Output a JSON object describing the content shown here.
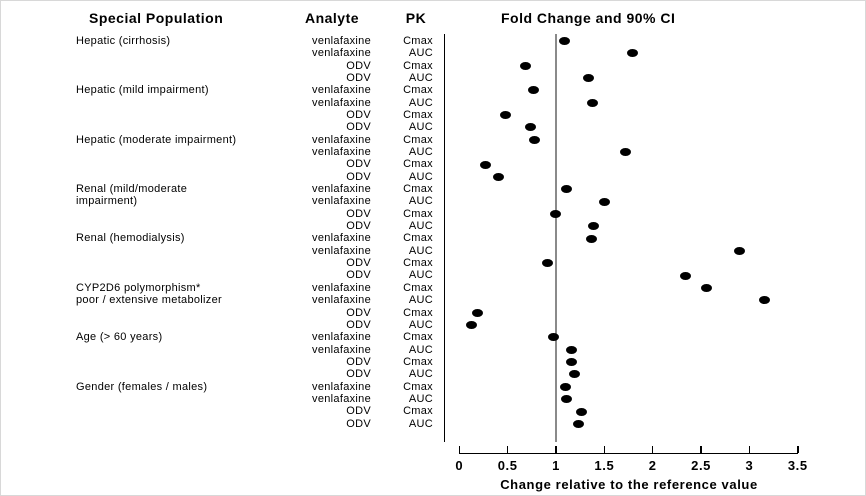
{
  "figure": {
    "background": "#ffffff",
    "dot_color": "#000000",
    "reference_line_color": "#8a8a8a",
    "axis_color": "#000000"
  },
  "headers": {
    "population": "Special Population",
    "analyte": "Analyte",
    "pk": "PK",
    "plot": "Fold Change and 90% CI"
  },
  "axis": {
    "title": "Change relative to the reference value",
    "ticks": [
      0,
      0.5,
      1,
      1.5,
      2,
      2.5,
      3,
      3.5
    ],
    "min": 0,
    "max": 3.5,
    "reference_value": 1
  },
  "chart_data": {
    "type": "scatter",
    "title": "Fold Change and 90% CI",
    "xlabel": "Change relative to the reference value",
    "xlim": [
      0,
      3.5
    ],
    "reference_line_x": 1,
    "grid": false,
    "rows": [
      {
        "population": "Hepatic (cirrhosis)",
        "analyte": "venlafaxine",
        "pk": "Cmax",
        "fold_change": 1.09
      },
      {
        "population": "",
        "analyte": "venlafaxine",
        "pk": "AUC",
        "fold_change": 1.79
      },
      {
        "population": "",
        "analyte": "ODV",
        "pk": "Cmax",
        "fold_change": 0.68
      },
      {
        "population": "",
        "analyte": "ODV",
        "pk": "AUC",
        "fold_change": 1.34
      },
      {
        "population": "Hepatic (mild impairment)",
        "analyte": "venlafaxine",
        "pk": "Cmax",
        "fold_change": 0.77
      },
      {
        "population": "",
        "analyte": "venlafaxine",
        "pk": "AUC",
        "fold_change": 1.38
      },
      {
        "population": "",
        "analyte": "ODV",
        "pk": "Cmax",
        "fold_change": 0.48
      },
      {
        "population": "",
        "analyte": "ODV",
        "pk": "AUC",
        "fold_change": 0.74
      },
      {
        "population": "Hepatic (moderate impairment)",
        "analyte": "venlafaxine",
        "pk": "Cmax",
        "fold_change": 0.78
      },
      {
        "population": "",
        "analyte": "venlafaxine",
        "pk": "AUC",
        "fold_change": 1.72
      },
      {
        "population": "",
        "analyte": "ODV",
        "pk": "Cmax",
        "fold_change": 0.27
      },
      {
        "population": "",
        "analyte": "ODV",
        "pk": "AUC",
        "fold_change": 0.41
      },
      {
        "population": "Renal (mild/moderate",
        "analyte": "venlafaxine",
        "pk": "Cmax",
        "fold_change": 1.11
      },
      {
        "population": "impairment)",
        "analyte": "venlafaxine",
        "pk": "AUC",
        "fold_change": 1.5
      },
      {
        "population": "",
        "analyte": "ODV",
        "pk": "Cmax",
        "fold_change": 0.99
      },
      {
        "population": "",
        "analyte": "ODV",
        "pk": "AUC",
        "fold_change": 1.39
      },
      {
        "population": "Renal (hemodialysis)",
        "analyte": "venlafaxine",
        "pk": "Cmax",
        "fold_change": 1.37
      },
      {
        "population": "",
        "analyte": "venlafaxine",
        "pk": "AUC",
        "fold_change": 2.9
      },
      {
        "population": "",
        "analyte": "ODV",
        "pk": "Cmax",
        "fold_change": 0.91
      },
      {
        "population": "",
        "analyte": "ODV",
        "pk": "AUC",
        "fold_change": 2.34
      },
      {
        "population": "CYP2D6 polymorphism*",
        "analyte": "venlafaxine",
        "pk": "Cmax",
        "fold_change": 2.56
      },
      {
        "population": "poor / extensive metabolizer",
        "analyte": "venlafaxine",
        "pk": "AUC",
        "fold_change": 3.16
      },
      {
        "population": "",
        "analyte": "ODV",
        "pk": "Cmax",
        "fold_change": 0.19
      },
      {
        "population": "",
        "analyte": "ODV",
        "pk": "AUC",
        "fold_change": 0.13
      },
      {
        "population": "Age (> 60 years)",
        "analyte": "venlafaxine",
        "pk": "Cmax",
        "fold_change": 0.97
      },
      {
        "population": "",
        "analyte": "venlafaxine",
        "pk": "AUC",
        "fold_change": 1.16
      },
      {
        "population": "",
        "analyte": "ODV",
        "pk": "Cmax",
        "fold_change": 1.16
      },
      {
        "population": "",
        "analyte": "ODV",
        "pk": "AUC",
        "fold_change": 1.19
      },
      {
        "population": "Gender (females / males)",
        "analyte": "venlafaxine",
        "pk": "Cmax",
        "fold_change": 1.1
      },
      {
        "population": "",
        "analyte": "venlafaxine",
        "pk": "AUC",
        "fold_change": 1.11
      },
      {
        "population": "",
        "analyte": "ODV",
        "pk": "Cmax",
        "fold_change": 1.26
      },
      {
        "population": "",
        "analyte": "ODV",
        "pk": "AUC",
        "fold_change": 1.23
      }
    ]
  }
}
